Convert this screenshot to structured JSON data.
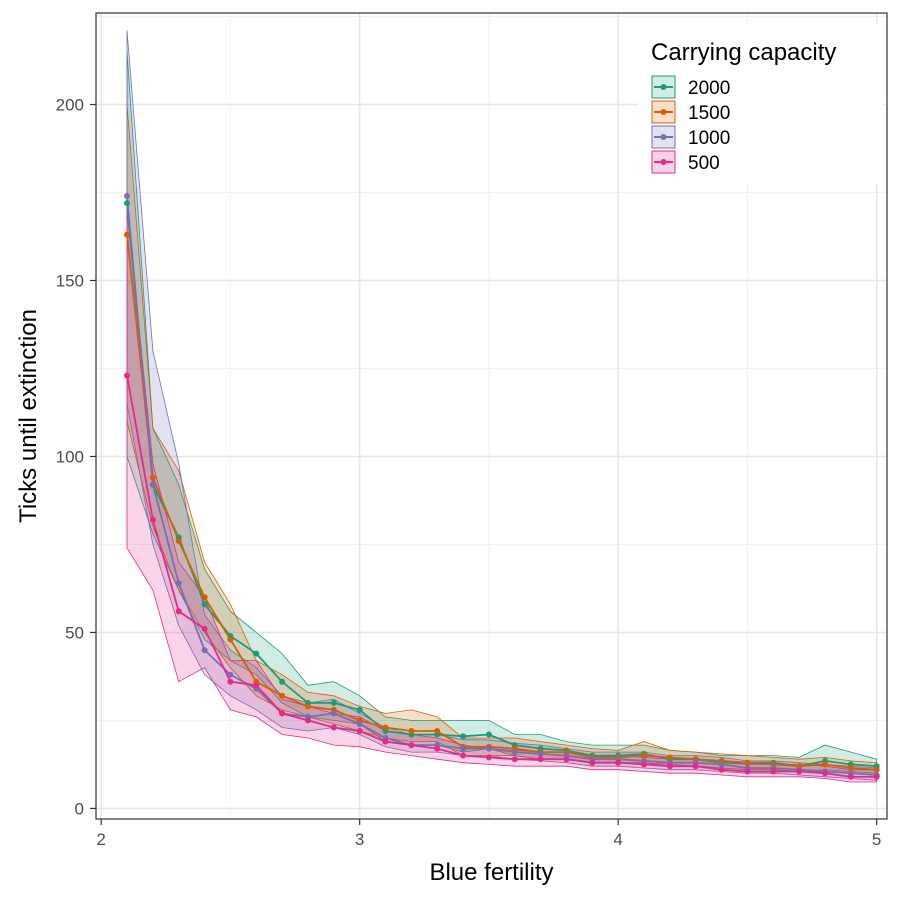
{
  "chart_data": {
    "type": "line",
    "xlabel": "Blue fertility",
    "ylabel": "Ticks until extinction",
    "xlim": [
      1.98,
      5.04
    ],
    "ylim": [
      -3,
      226
    ],
    "x_ticks": [
      2,
      3,
      4,
      5
    ],
    "y_ticks": [
      0,
      50,
      100,
      150,
      200
    ],
    "grid": true,
    "legend": {
      "title": "Carrying capacity",
      "position": "top-right"
    },
    "x": [
      2.1,
      2.2,
      2.3,
      2.4,
      2.5,
      2.6,
      2.7,
      2.8,
      2.9,
      3.0,
      3.1,
      3.2,
      3.3,
      3.4,
      3.5,
      3.6,
      3.7,
      3.8,
      3.9,
      4.0,
      4.1,
      4.2,
      4.3,
      4.4,
      4.5,
      4.6,
      4.7,
      4.8,
      4.9,
      5.0
    ],
    "series": [
      {
        "name": "2000",
        "color": "#1b9e77",
        "values": [
          172,
          92,
          77,
          58,
          49,
          44,
          36,
          30,
          30,
          28,
          22,
          21,
          21,
          20.5,
          21,
          18,
          17,
          16.5,
          15,
          15,
          15.5,
          14,
          14,
          13,
          13,
          13,
          12,
          13.5,
          12.5,
          12
        ],
        "lower": [
          100,
          78,
          62,
          48,
          42,
          38,
          30,
          26,
          25,
          24,
          19,
          18,
          18,
          16,
          17,
          15,
          14,
          14,
          13,
          13,
          13,
          12,
          12,
          11.5,
          11,
          11,
          10.5,
          11,
          10.5,
          10
        ],
        "upper": [
          215,
          108,
          92,
          68,
          56,
          50,
          44,
          35,
          36,
          32,
          26,
          25,
          25,
          25,
          25,
          21,
          21,
          19,
          18,
          18,
          18,
          16.5,
          16,
          15,
          15,
          15,
          14.5,
          18,
          16,
          14
        ]
      },
      {
        "name": "1500",
        "color": "#d95f02",
        "values": [
          163,
          94,
          76,
          60,
          48,
          36,
          32,
          29,
          28,
          25,
          23,
          22,
          22,
          17.5,
          17.5,
          17,
          16,
          16,
          14.5,
          14.5,
          15,
          14.5,
          14,
          13.5,
          13,
          12.5,
          12,
          12.5,
          11.5,
          11
        ],
        "lower": [
          110,
          80,
          62,
          50,
          40,
          32,
          28,
          26,
          24,
          22,
          20,
          19,
          19,
          15,
          15,
          15,
          14,
          14,
          13,
          13,
          13,
          12.5,
          12,
          11.5,
          11,
          11,
          10.5,
          10.5,
          10,
          9.5
        ],
        "upper": [
          200,
          108,
          96,
          70,
          58,
          42,
          38,
          33,
          32,
          29,
          27,
          28,
          26,
          20,
          20,
          20,
          19,
          18,
          17,
          16.5,
          19,
          16.5,
          16,
          15.5,
          15,
          14.5,
          14,
          14.5,
          13.5,
          13
        ]
      },
      {
        "name": "1000",
        "color": "#7570b3",
        "values": [
          174,
          92,
          64,
          45,
          38,
          34,
          27,
          26,
          27,
          24,
          20,
          18,
          18,
          17,
          17,
          16,
          15.5,
          15,
          14,
          14,
          13.5,
          13,
          13,
          12.5,
          11.5,
          11.5,
          11,
          10.5,
          10,
          9.5
        ],
        "lower": [
          115,
          75,
          52,
          38,
          32,
          28,
          23,
          22,
          23,
          21,
          17.5,
          16,
          16,
          15,
          15,
          14,
          13.5,
          13,
          12,
          12,
          11.5,
          11,
          11,
          10.5,
          10,
          10,
          9.5,
          9,
          8.5,
          8
        ],
        "upper": [
          221,
          130,
          98,
          55,
          45,
          40,
          32,
          30,
          31,
          27,
          23,
          21,
          21,
          19.5,
          19.5,
          18.5,
          18,
          17,
          16,
          16,
          16,
          15,
          15,
          14.5,
          13.5,
          13.5,
          13,
          12.5,
          12,
          11.5
        ]
      },
      {
        "name": "500",
        "color": "#e7298a",
        "values": [
          123,
          82,
          56,
          51,
          36,
          35,
          27,
          25,
          23,
          22,
          19,
          18,
          17,
          15,
          14.5,
          14,
          14,
          14,
          13,
          13,
          12.5,
          12,
          12,
          11,
          10.5,
          10.5,
          10.5,
          10,
          9,
          9
        ],
        "lower": [
          74,
          62,
          36,
          40,
          28,
          26,
          21,
          20,
          18,
          17.5,
          16,
          15,
          14,
          13,
          12.5,
          12,
          12,
          12,
          11,
          11,
          10.5,
          10,
          10,
          9.5,
          9,
          9,
          9,
          8.5,
          7.5,
          7.5
        ],
        "upper": [
          170,
          98,
          70,
          60,
          42,
          42,
          31,
          29,
          27,
          26,
          22,
          21,
          20,
          18,
          17,
          16.5,
          16,
          16,
          15,
          15,
          14.5,
          14,
          14,
          13,
          12.5,
          12.5,
          12.5,
          12,
          11,
          11
        ]
      }
    ]
  }
}
